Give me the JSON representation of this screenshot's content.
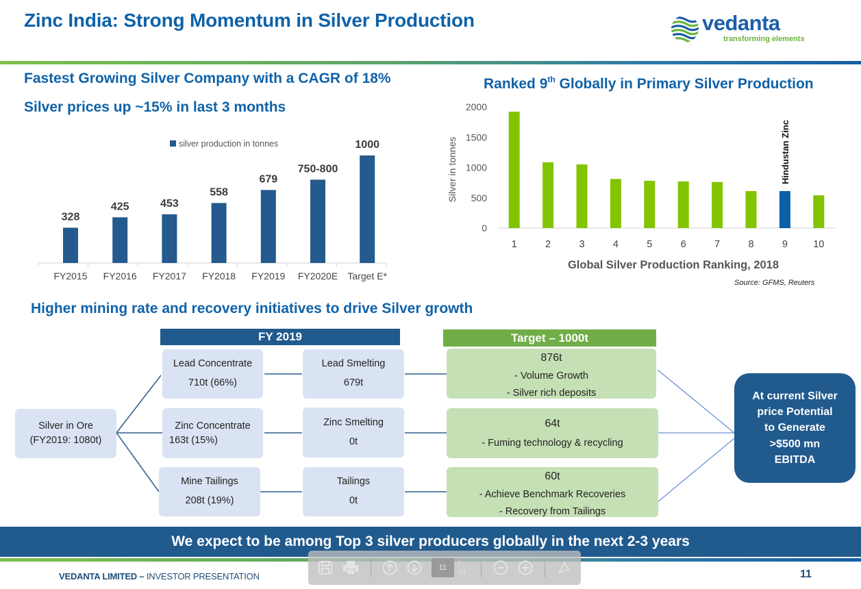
{
  "header": {
    "title": "Zinc India: Strong Momentum in Silver Production",
    "logo": {
      "name": "vedanta",
      "tagline": "transforming elements",
      "icon": "globe-waves-icon"
    }
  },
  "left_section": {
    "heading1": "Fastest Growing Silver Company with a CAGR of 18%",
    "heading2": "Silver prices up ~15% in last 3 months"
  },
  "right_section": {
    "heading_pre": "Ranked 9",
    "heading_sup": "th",
    "heading_post": " Globally in Primary Silver Production",
    "source": "Source: GFMS, Reuters"
  },
  "chart_data": [
    {
      "type": "bar",
      "title": "",
      "legend": [
        "silver production in tonnes"
      ],
      "legend_position": "top",
      "categories": [
        "FY2015",
        "FY2016",
        "FY2017",
        "FY2018",
        "FY2019",
        "FY2020E",
        "Target E*"
      ],
      "values": [
        328,
        425,
        453,
        558,
        679,
        775,
        1000
      ],
      "data_labels": [
        "328",
        "425",
        "453",
        "558",
        "679",
        "750-800",
        "1000"
      ],
      "xlabel": "",
      "ylabel": "",
      "ylim": [
        0,
        1000
      ],
      "grid": false,
      "color": "#245a8d"
    },
    {
      "type": "bar",
      "title": "",
      "categories": [
        "1",
        "2",
        "3",
        "4",
        "5",
        "6",
        "7",
        "8",
        "9",
        "10"
      ],
      "values": [
        1920,
        1085,
        1050,
        810,
        780,
        770,
        760,
        610,
        610,
        540
      ],
      "xlabel": "Global Silver Production Ranking, 2018",
      "ylabel": "Silver in tonnes",
      "yticks": [
        0,
        500,
        1000,
        1500,
        2000
      ],
      "ylim": [
        0,
        2000
      ],
      "grid": false,
      "highlight_index": 8,
      "highlight_label": "Hindustan Zinc",
      "colors": {
        "default": "#82c400",
        "highlight": "#0a5fa5"
      }
    }
  ],
  "flow": {
    "heading": "Higher mining rate and recovery initiatives to drive Silver growth",
    "fy_header": "FY 2019",
    "target_header": "Target – 1000t",
    "source_box": {
      "line1": "Silver in Ore",
      "line2": "(FY2019: 1080t)"
    },
    "concentrates": [
      {
        "line1": "Lead Concentrate",
        "line2": "710t (66%)"
      },
      {
        "line1": "Zinc Concentrate",
        "line2": "163t (15%)"
      },
      {
        "line1": "Mine Tailings",
        "line2": "208t (19%)"
      }
    ],
    "smelting": [
      {
        "line1": "Lead Smelting",
        "line2": "679t"
      },
      {
        "line1": "Zinc Smelting",
        "line2": "0t"
      },
      {
        "line1": "Tailings",
        "line2": "0t"
      }
    ],
    "targets": [
      {
        "amount": "876t",
        "points": [
          "- Volume Growth",
          "- Silver rich deposits"
        ]
      },
      {
        "amount": "64t",
        "points": [
          "- Fuming technology & recycling"
        ]
      },
      {
        "amount": "60t",
        "points": [
          "- Achieve Benchmark Recoveries",
          "- Recovery from Tailings"
        ]
      }
    ],
    "outcome": [
      "At current Silver",
      "price Potential",
      "to Generate",
      ">$500 mn",
      "EBITDA"
    ]
  },
  "banner": "We expect to be among Top 3 silver producers globally in the next 2-3 years",
  "footer": {
    "company": "VEDANTA  LIMITED – ",
    "doc": "INVESTOR PRESENTATION",
    "page_number": "11"
  },
  "pdf_toolbar": {
    "current_page": "11",
    "total_pages": "/ 31",
    "buttons": [
      "save-icon",
      "print-icon",
      "previous-page-icon",
      "next-page-icon",
      "zoom-out-icon",
      "zoom-in-icon",
      "acrobat-icon"
    ]
  }
}
